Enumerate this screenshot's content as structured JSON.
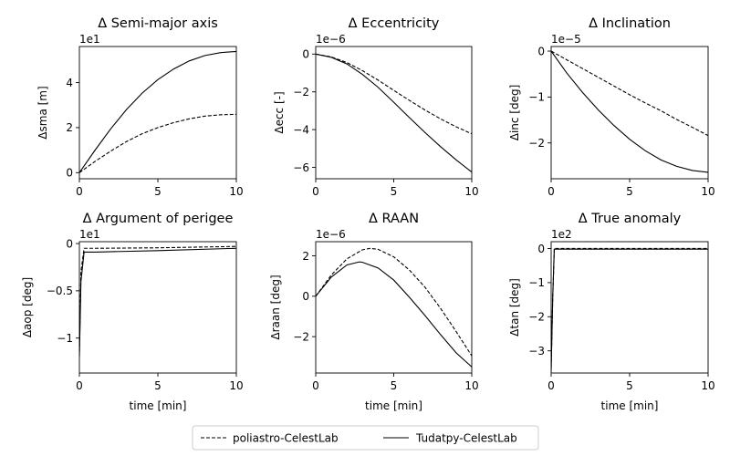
{
  "legend": {
    "dashed_label": "poliastro-CelestLab",
    "solid_label": "Tudatpy-CelestLab"
  },
  "colors": {
    "line": "#000000",
    "background": "#ffffff"
  },
  "chart_data": [
    {
      "type": "line",
      "title": "Δ Semi-major axis",
      "ylabel": "Δsma [m]",
      "xlabel": "",
      "multiplier": "1e1",
      "xlim": [
        0,
        10
      ],
      "ylim": [
        -0.27,
        5.6
      ],
      "xticks": [
        0,
        5,
        10
      ],
      "yticks": [
        0,
        2,
        4
      ],
      "series": [
        {
          "name": "poliastro-CelestLab",
          "style": "dashed",
          "x": [
            0,
            1,
            2,
            3,
            4,
            5,
            6,
            7,
            8,
            9,
            10
          ],
          "y": [
            0,
            0.5,
            0.96,
            1.38,
            1.73,
            2.0,
            2.22,
            2.39,
            2.51,
            2.57,
            2.59
          ]
        },
        {
          "name": "Tudatpy-CelestLab",
          "style": "solid",
          "x": [
            0,
            1,
            2,
            3,
            4,
            5,
            6,
            7,
            8,
            9,
            10
          ],
          "y": [
            0,
            1.0,
            1.95,
            2.8,
            3.53,
            4.13,
            4.6,
            4.96,
            5.2,
            5.33,
            5.38
          ]
        }
      ]
    },
    {
      "type": "line",
      "title": "Δ Eccentricity",
      "ylabel": "Δecc [-]",
      "xlabel": "",
      "multiplier": "1e−6",
      "xlim": [
        0,
        10
      ],
      "ylim": [
        -6.6,
        0.4
      ],
      "xticks": [
        0,
        5,
        10
      ],
      "yticks": [
        -6,
        -4,
        -2,
        0
      ],
      "series": [
        {
          "name": "poliastro-CelestLab",
          "style": "dashed",
          "x": [
            0,
            1,
            2,
            3,
            4,
            5,
            6,
            7,
            8,
            9,
            10
          ],
          "y": [
            0,
            -0.15,
            -0.45,
            -0.88,
            -1.38,
            -1.92,
            -2.45,
            -2.96,
            -3.43,
            -3.85,
            -4.22
          ]
        },
        {
          "name": "Tudatpy-CelestLab",
          "style": "solid",
          "x": [
            0,
            1,
            2,
            3,
            4,
            5,
            6,
            7,
            8,
            9,
            10
          ],
          "y": [
            0,
            -0.17,
            -0.52,
            -1.08,
            -1.76,
            -2.55,
            -3.36,
            -4.15,
            -4.9,
            -5.6,
            -6.25
          ]
        }
      ]
    },
    {
      "type": "line",
      "title": "Δ Inclination",
      "ylabel": "Δinc [deg]",
      "xlabel": "",
      "multiplier": "1e−5",
      "xlim": [
        0,
        10
      ],
      "ylim": [
        -2.78,
        0.1
      ],
      "xticks": [
        0,
        5,
        10
      ],
      "yticks": [
        -2,
        -1,
        0
      ],
      "series": [
        {
          "name": "poliastro-CelestLab",
          "style": "dashed",
          "x": [
            0,
            1,
            2,
            3,
            4,
            5,
            6,
            7,
            8,
            9,
            10
          ],
          "y": [
            0,
            -0.19,
            -0.38,
            -0.57,
            -0.76,
            -0.95,
            -1.13,
            -1.3,
            -1.49,
            -1.66,
            -1.84
          ]
        },
        {
          "name": "Tudatpy-CelestLab",
          "style": "solid",
          "x": [
            0,
            1,
            2,
            3,
            4,
            5,
            6,
            7,
            8,
            9,
            10
          ],
          "y": [
            0,
            -0.48,
            -0.9,
            -1.28,
            -1.62,
            -1.92,
            -2.17,
            -2.37,
            -2.51,
            -2.6,
            -2.64
          ]
        }
      ]
    },
    {
      "type": "line",
      "title": "Δ Argument of perigee",
      "ylabel": "Δaop [deg]",
      "xlabel": "time [min]",
      "multiplier": "1e1",
      "xlim": [
        0,
        10
      ],
      "ylim": [
        -1.37,
        0.02
      ],
      "xticks": [
        0,
        5,
        10
      ],
      "yticks": [
        -1.0,
        -0.5,
        0.0
      ],
      "series": [
        {
          "name": "poliastro-CelestLab",
          "style": "dashed",
          "x": [
            0,
            0.1,
            0.3,
            1,
            5,
            10
          ],
          "y": [
            -1.15,
            -0.3,
            -0.05,
            -0.05,
            -0.045,
            -0.03
          ]
        },
        {
          "name": "Tudatpy-CelestLab",
          "style": "solid",
          "x": [
            0,
            0.1,
            0.3,
            1,
            5,
            10
          ],
          "y": [
            -1.2,
            -0.4,
            -0.09,
            -0.09,
            -0.075,
            -0.05
          ]
        }
      ]
    },
    {
      "type": "line",
      "title": "Δ RAAN",
      "ylabel": "Δraan [deg]",
      "xlabel": "time [min]",
      "multiplier": "1e−6",
      "xlim": [
        0,
        10
      ],
      "ylim": [
        -3.8,
        2.7
      ],
      "xticks": [
        0,
        5,
        10
      ],
      "yticks": [
        -2,
        0,
        2
      ],
      "series": [
        {
          "name": "poliastro-CelestLab",
          "style": "dashed",
          "x": [
            0,
            1,
            2,
            3,
            3.5,
            4,
            5,
            6,
            7,
            8,
            9,
            10
          ],
          "y": [
            0,
            1.05,
            1.85,
            2.3,
            2.37,
            2.32,
            1.95,
            1.3,
            0.45,
            -0.6,
            -1.75,
            -2.95
          ]
        },
        {
          "name": "Tudatpy-CelestLab",
          "style": "solid",
          "x": [
            0,
            1,
            2,
            2.8,
            3,
            4,
            5,
            6,
            7,
            8,
            9,
            10
          ],
          "y": [
            0,
            0.95,
            1.55,
            1.7,
            1.68,
            1.4,
            0.8,
            -0.05,
            -0.95,
            -1.9,
            -2.8,
            -3.5
          ]
        }
      ]
    },
    {
      "type": "line",
      "title": "Δ True anomaly",
      "ylabel": "Δtan [deg]",
      "xlabel": "time [min]",
      "multiplier": "1e2",
      "xlim": [
        0,
        10
      ],
      "ylim": [
        -3.65,
        0.2
      ],
      "xticks": [
        0,
        5,
        10
      ],
      "yticks": [
        -3,
        -2,
        -1,
        0
      ],
      "series": [
        {
          "name": "poliastro-CelestLab",
          "style": "dashed",
          "x": [
            0,
            0.1,
            0.2,
            1,
            5,
            10
          ],
          "y": [
            -3.5,
            -1.5,
            0,
            0,
            0,
            0
          ]
        },
        {
          "name": "Tudatpy-CelestLab",
          "style": "solid",
          "x": [
            0,
            0.1,
            0.2,
            1,
            5,
            10
          ],
          "y": [
            -3.6,
            -1.4,
            -0.02,
            -0.02,
            -0.02,
            -0.02
          ]
        }
      ]
    }
  ]
}
